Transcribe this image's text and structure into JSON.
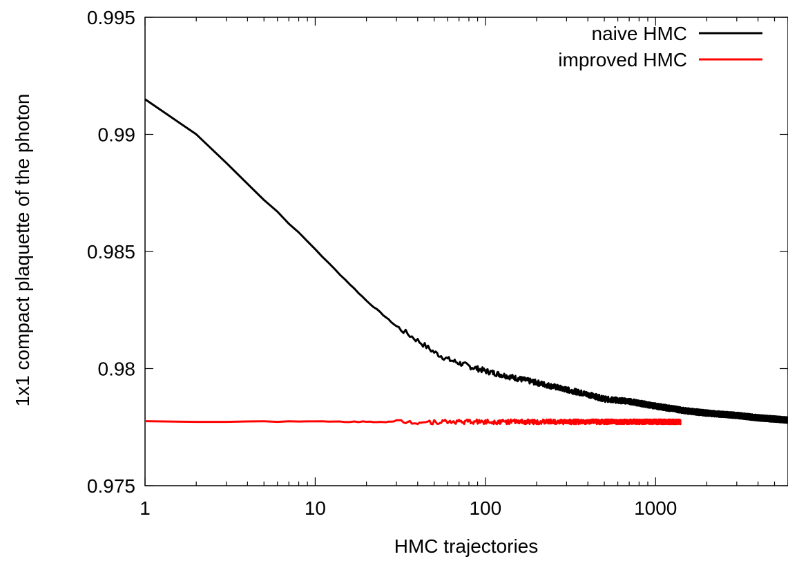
{
  "chart_data": {
    "type": "line",
    "xlabel": "HMC trajectories",
    "ylabel": "1x1 compact plaquette of the photon",
    "xscale": "log",
    "xlim": [
      1,
      6000
    ],
    "ylim": [
      0.975,
      0.995
    ],
    "x_ticks": [
      {
        "value": 1,
        "label": "1"
      },
      {
        "value": 10,
        "label": "10"
      },
      {
        "value": 100,
        "label": "100"
      },
      {
        "value": 1000,
        "label": "1000"
      }
    ],
    "y_ticks": [
      {
        "value": 0.975,
        "label": "0.975"
      },
      {
        "value": 0.98,
        "label": "0.98"
      },
      {
        "value": 0.985,
        "label": "0.985"
      },
      {
        "value": 0.99,
        "label": "0.99"
      },
      {
        "value": 0.995,
        "label": "0.995"
      }
    ],
    "legend_position": "top-right",
    "grid": false,
    "series": [
      {
        "name": "naive HMC",
        "color": "#000000",
        "x": [
          1,
          2,
          3,
          4,
          5,
          6,
          7,
          8,
          10,
          12,
          15,
          20,
          25,
          30,
          40,
          50,
          60,
          80,
          100,
          150,
          200,
          300,
          400,
          500,
          700,
          1000,
          1500,
          2000,
          3000,
          4000,
          6000
        ],
        "y": [
          0.9915,
          0.99,
          0.9888,
          0.9879,
          0.9872,
          0.9867,
          0.9862,
          0.9858,
          0.9851,
          0.9845,
          0.9838,
          0.9829,
          0.9823,
          0.9818,
          0.9812,
          0.9807,
          0.9804,
          0.9801,
          0.9799,
          0.9796,
          0.9794,
          0.9791,
          0.9789,
          0.9787,
          0.9786,
          0.9784,
          0.9782,
          0.9781,
          0.978,
          0.9779,
          0.9778
        ]
      },
      {
        "name": "improved HMC",
        "color": "#ff0000",
        "x": [
          1,
          2,
          4,
          6,
          10,
          15,
          20,
          30,
          40,
          60,
          100,
          200,
          400,
          800,
          1400
        ],
        "y": [
          0.97775,
          0.97772,
          0.97776,
          0.97773,
          0.97774,
          0.97773,
          0.97773,
          0.97773,
          0.97772,
          0.97773,
          0.97773,
          0.97773,
          0.97773,
          0.97773,
          0.97773
        ]
      }
    ]
  }
}
